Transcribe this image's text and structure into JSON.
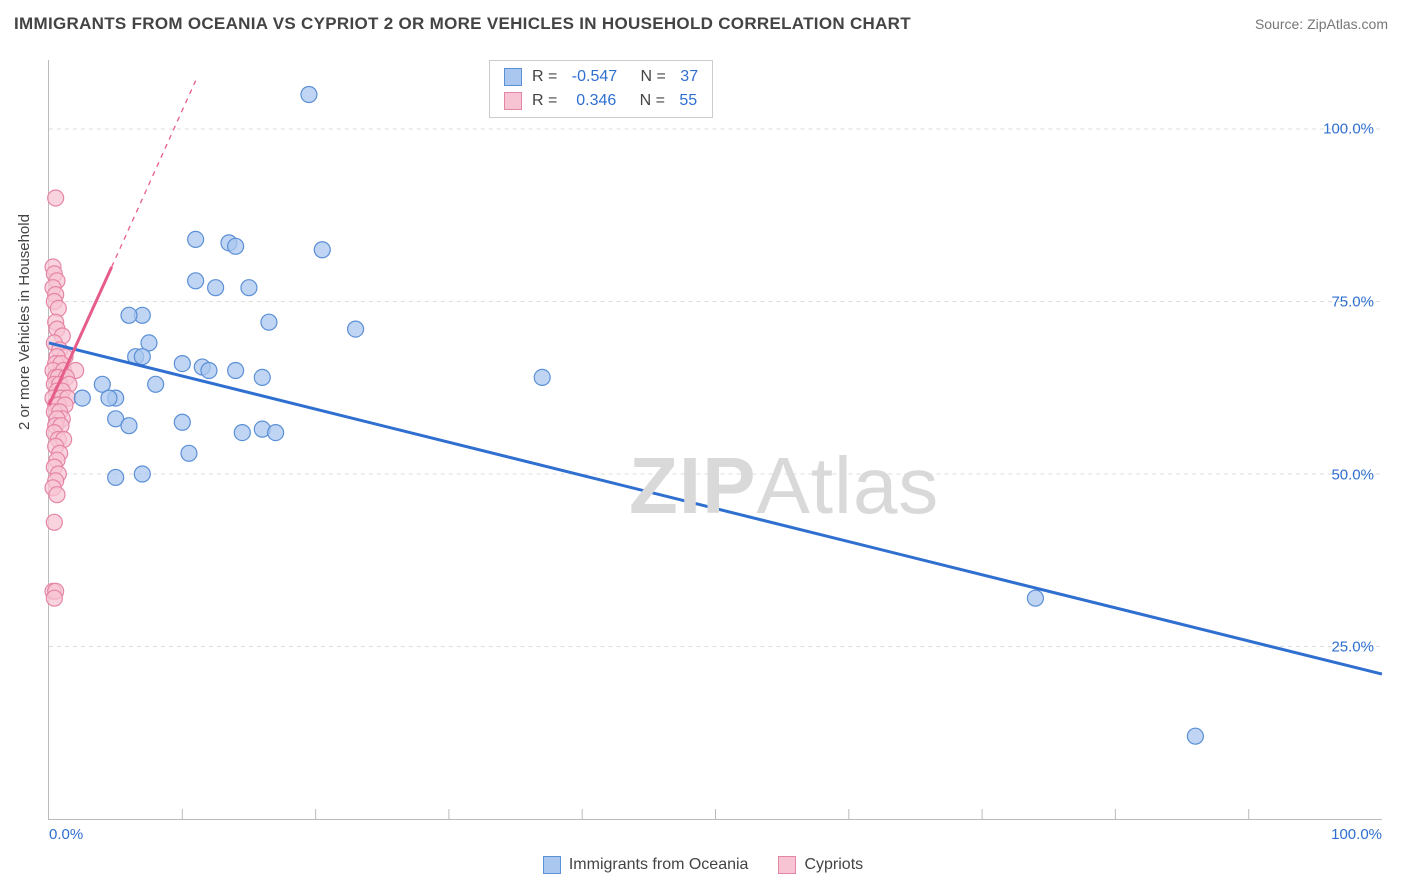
{
  "title": "IMMIGRANTS FROM OCEANIA VS CYPRIOT 2 OR MORE VEHICLES IN HOUSEHOLD CORRELATION CHART",
  "source_label": "Source: ZipAtlas.com",
  "ylabel": "2 or more Vehicles in Household",
  "watermark": {
    "part1": "ZIP",
    "part2": "Atlas"
  },
  "chart": {
    "type": "scatter",
    "xlim": [
      0,
      100
    ],
    "ylim": [
      0,
      110
    ],
    "grid_y": [
      25,
      50,
      75,
      100
    ],
    "grid_color": "#dcdcdc",
    "y_ticks": [
      25,
      50,
      75,
      100
    ],
    "y_tick_labels": [
      "25.0%",
      "50.0%",
      "75.0%",
      "100.0%"
    ],
    "x_ticks_minor": [
      10,
      20,
      30,
      40,
      50,
      60,
      70,
      80,
      90
    ],
    "x_axis_labels": {
      "left": "0.0%",
      "right": "100.0%"
    },
    "marker_radius": 8,
    "marker_stroke_width": 1.2,
    "axis_color": "#bbbbbb",
    "tick_label_color": "#2f6fd0",
    "tick_label_fontsize": 15,
    "background_color": "#ffffff"
  },
  "series": [
    {
      "key": "blue",
      "label": "Immigrants from Oceania",
      "fill": "#a9c7ef",
      "stroke": "#5b8fd6",
      "trend": {
        "x1": 0,
        "y1": 69,
        "x2": 100,
        "y2": 21,
        "stroke": "#2f6fd0",
        "width": 3
      },
      "R": "-0.547",
      "N": "37",
      "points": [
        [
          19.5,
          105
        ],
        [
          11,
          84
        ],
        [
          13.5,
          83.5
        ],
        [
          14,
          83
        ],
        [
          20.5,
          82.5
        ],
        [
          11,
          78
        ],
        [
          15,
          77
        ],
        [
          12.5,
          77
        ],
        [
          7,
          73
        ],
        [
          6,
          73
        ],
        [
          16.5,
          72
        ],
        [
          23,
          71
        ],
        [
          7.5,
          69
        ],
        [
          6.5,
          67
        ],
        [
          7,
          67
        ],
        [
          10,
          66
        ],
        [
          11.5,
          65.5
        ],
        [
          12,
          65
        ],
        [
          14,
          65
        ],
        [
          16,
          64
        ],
        [
          37,
          64
        ],
        [
          4,
          63
        ],
        [
          8,
          63
        ],
        [
          2.5,
          61
        ],
        [
          5,
          61
        ],
        [
          4.5,
          61
        ],
        [
          5,
          58
        ],
        [
          6,
          57
        ],
        [
          10,
          57.5
        ],
        [
          14.5,
          56
        ],
        [
          16,
          56.5
        ],
        [
          17,
          56
        ],
        [
          10.5,
          53
        ],
        [
          7,
          50
        ],
        [
          5,
          49.5
        ],
        [
          74,
          32
        ],
        [
          86,
          12
        ]
      ]
    },
    {
      "key": "pink",
      "label": "Cypriots",
      "fill": "#f7c4d3",
      "stroke": "#e585a6",
      "trend_solid": {
        "x1": 0,
        "y1": 60,
        "x2": 4.7,
        "y2": 80,
        "stroke": "#e75d8a",
        "width": 3
      },
      "trend_dashed": {
        "x1": 4.7,
        "y1": 80,
        "x2": 11,
        "y2": 107,
        "stroke": "#e75d8a",
        "width": 1.3,
        "dash": "5 5"
      },
      "R": "0.346",
      "N": "55",
      "points": [
        [
          0.5,
          90
        ],
        [
          0.3,
          80
        ],
        [
          0.4,
          79
        ],
        [
          0.6,
          78
        ],
        [
          0.3,
          77
        ],
        [
          0.5,
          76
        ],
        [
          0.4,
          75
        ],
        [
          0.7,
          74
        ],
        [
          0.5,
          72
        ],
        [
          0.6,
          71
        ],
        [
          1.0,
          70
        ],
        [
          0.4,
          69
        ],
        [
          0.8,
          68
        ],
        [
          1.2,
          67
        ],
        [
          0.6,
          67
        ],
        [
          0.5,
          66
        ],
        [
          0.9,
          66
        ],
        [
          0.3,
          65
        ],
        [
          1.1,
          65
        ],
        [
          2.0,
          65
        ],
        [
          0.5,
          64
        ],
        [
          0.7,
          64
        ],
        [
          1.3,
          64
        ],
        [
          0.4,
          63
        ],
        [
          0.8,
          63
        ],
        [
          1.5,
          63
        ],
        [
          0.6,
          62
        ],
        [
          1.0,
          62
        ],
        [
          0.3,
          61
        ],
        [
          0.9,
          61
        ],
        [
          1.4,
          61
        ],
        [
          0.5,
          60
        ],
        [
          0.7,
          60
        ],
        [
          1.2,
          60
        ],
        [
          0.4,
          59
        ],
        [
          0.8,
          59
        ],
        [
          1.0,
          58
        ],
        [
          0.6,
          58
        ],
        [
          0.5,
          57
        ],
        [
          0.9,
          57
        ],
        [
          0.4,
          56
        ],
        [
          0.7,
          55
        ],
        [
          1.1,
          55
        ],
        [
          0.5,
          54
        ],
        [
          0.8,
          53
        ],
        [
          0.6,
          52
        ],
        [
          0.4,
          51
        ],
        [
          0.7,
          50
        ],
        [
          0.5,
          49
        ],
        [
          0.3,
          48
        ],
        [
          0.6,
          47
        ],
        [
          0.4,
          43
        ],
        [
          0.3,
          33
        ],
        [
          0.5,
          33
        ],
        [
          0.4,
          32
        ]
      ]
    }
  ],
  "stats_box": {
    "rows": [
      {
        "swatch": "blue",
        "R_label": "R = ",
        "R": "-0.547",
        "N_label": "   N = ",
        "N": "37"
      },
      {
        "swatch": "pink",
        "R_label": "R = ",
        "R": " 0.346",
        "N_label": "   N = ",
        "N": "55"
      }
    ]
  },
  "bottom_legend": [
    {
      "swatch": "blue",
      "label": "Immigrants from Oceania"
    },
    {
      "swatch": "pink",
      "label": "Cypriots"
    }
  ]
}
